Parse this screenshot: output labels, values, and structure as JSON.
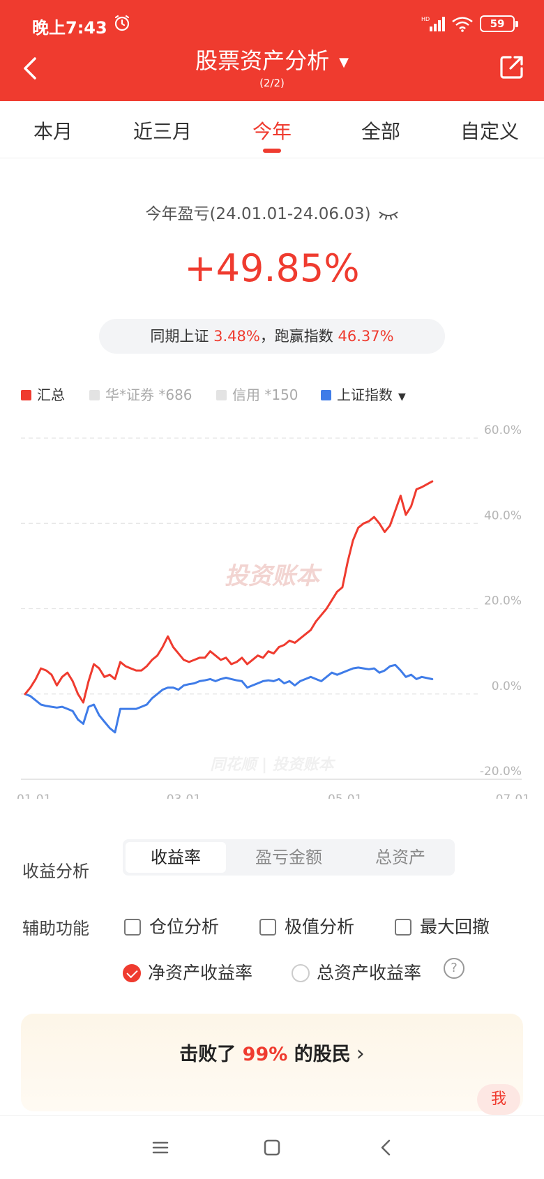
{
  "status_bar": {
    "time": "晚上7:43",
    "battery": "59"
  },
  "header": {
    "title": "股票资产分析",
    "subtitle": "(2/2)"
  },
  "tabs": [
    {
      "label": "本月"
    },
    {
      "label": "近三月"
    },
    {
      "label": "今年"
    },
    {
      "label": "全部"
    },
    {
      "label": "自定义"
    }
  ],
  "summary": {
    "period_label": "今年盈亏(24.01.01-24.06.03)",
    "value": "+49.85%",
    "compare_prefix": "同期上证",
    "index_return": "3.48%",
    "compare_mid": "，跑赢指数",
    "excess_return": "46.37%"
  },
  "legend": [
    {
      "name": "汇总",
      "color": "#ef3b2f"
    },
    {
      "name": "华*证券 *686",
      "color": "#e3e3e3"
    },
    {
      "name": "信用 *150",
      "color": "#e3e3e3"
    },
    {
      "name": "上证指数",
      "color": "#3f7ce8"
    }
  ],
  "chart_data": {
    "type": "line",
    "watermark": "投资账本",
    "watermark_bottom": "同花顺 | 投资账本",
    "x_ticks": [
      "01-01",
      "03-01",
      "05-01",
      "07-01"
    ],
    "y_ticks": [
      "60.0%",
      "40.0%",
      "20.0%",
      "0.0%",
      "-20.0%"
    ],
    "ylim": [
      -20,
      60
    ],
    "y_unit": "%",
    "series": [
      {
        "name": "汇总",
        "color": "#ef3b2f",
        "points": [
          [
            "01-01",
            0
          ],
          [
            "01-03",
            1.5
          ],
          [
            "01-05",
            3.5
          ],
          [
            "01-07",
            6
          ],
          [
            "01-09",
            5.5
          ],
          [
            "01-11",
            4.5
          ],
          [
            "01-13",
            2
          ],
          [
            "01-15",
            4
          ],
          [
            "01-17",
            5
          ],
          [
            "01-19",
            3
          ],
          [
            "01-21",
            0
          ],
          [
            "01-23",
            -2
          ],
          [
            "01-25",
            3
          ],
          [
            "01-27",
            7
          ],
          [
            "01-29",
            6
          ],
          [
            "01-31",
            4
          ],
          [
            "02-02",
            4.5
          ],
          [
            "02-04",
            3.5
          ],
          [
            "02-06",
            7.5
          ],
          [
            "02-08",
            6.5
          ],
          [
            "02-10",
            6
          ],
          [
            "02-12",
            5.5
          ],
          [
            "02-14",
            5.5
          ],
          [
            "02-16",
            6.5
          ],
          [
            "02-18",
            8
          ],
          [
            "02-20",
            9
          ],
          [
            "02-22",
            11
          ],
          [
            "02-24",
            13.5
          ],
          [
            "02-26",
            11
          ],
          [
            "02-28",
            9.5
          ],
          [
            "03-01",
            8
          ],
          [
            "03-03",
            7.5
          ],
          [
            "03-05",
            8
          ],
          [
            "03-07",
            8.5
          ],
          [
            "03-09",
            8.5
          ],
          [
            "03-11",
            10
          ],
          [
            "03-13",
            9
          ],
          [
            "03-15",
            8
          ],
          [
            "03-17",
            8.5
          ],
          [
            "03-19",
            7
          ],
          [
            "03-21",
            7.5
          ],
          [
            "03-23",
            8.5
          ],
          [
            "03-25",
            7
          ],
          [
            "03-27",
            8
          ],
          [
            "03-29",
            9
          ],
          [
            "03-31",
            8.5
          ],
          [
            "04-02",
            10
          ],
          [
            "04-04",
            9.5
          ],
          [
            "04-06",
            11
          ],
          [
            "04-08",
            11.5
          ],
          [
            "04-10",
            12.5
          ],
          [
            "04-12",
            12
          ],
          [
            "04-14",
            13
          ],
          [
            "04-16",
            14
          ],
          [
            "04-18",
            15
          ],
          [
            "04-20",
            17
          ],
          [
            "04-22",
            18.5
          ],
          [
            "04-24",
            20
          ],
          [
            "04-26",
            22
          ],
          [
            "04-28",
            24
          ],
          [
            "04-30",
            25
          ],
          [
            "05-02",
            31
          ],
          [
            "05-04",
            36
          ],
          [
            "05-06",
            39
          ],
          [
            "05-08",
            40
          ],
          [
            "05-10",
            40.5
          ],
          [
            "05-12",
            41.5
          ],
          [
            "05-14",
            40
          ],
          [
            "05-16",
            38
          ],
          [
            "05-18",
            39.5
          ],
          [
            "05-20",
            43
          ],
          [
            "05-22",
            46.5
          ],
          [
            "05-24",
            42
          ],
          [
            "05-26",
            44
          ],
          [
            "05-28",
            48
          ],
          [
            "05-30",
            48.5
          ],
          [
            "06-03",
            49.85
          ]
        ]
      },
      {
        "name": "上证指数",
        "color": "#3f7ce8",
        "points": [
          [
            "01-01",
            0
          ],
          [
            "01-03",
            -0.5
          ],
          [
            "01-05",
            -1.5
          ],
          [
            "01-07",
            -2.5
          ],
          [
            "01-09",
            -2.8
          ],
          [
            "01-11",
            -3
          ],
          [
            "01-13",
            -3.2
          ],
          [
            "01-15",
            -3
          ],
          [
            "01-17",
            -3.5
          ],
          [
            "01-19",
            -4
          ],
          [
            "01-21",
            -6
          ],
          [
            "01-23",
            -7
          ],
          [
            "01-25",
            -3
          ],
          [
            "01-27",
            -2.5
          ],
          [
            "01-29",
            -5
          ],
          [
            "01-31",
            -6.5
          ],
          [
            "02-02",
            -8
          ],
          [
            "02-04",
            -9
          ],
          [
            "02-06",
            -3.5
          ],
          [
            "02-08",
            -3.5
          ],
          [
            "02-10",
            -3.5
          ],
          [
            "02-12",
            -3.5
          ],
          [
            "02-14",
            -3
          ],
          [
            "02-16",
            -2.5
          ],
          [
            "02-18",
            -1
          ],
          [
            "02-20",
            0
          ],
          [
            "02-22",
            1
          ],
          [
            "02-24",
            1.5
          ],
          [
            "02-26",
            1.5
          ],
          [
            "02-28",
            1
          ],
          [
            "03-01",
            2
          ],
          [
            "03-03",
            2.3
          ],
          [
            "03-05",
            2.5
          ],
          [
            "03-07",
            3
          ],
          [
            "03-09",
            3.2
          ],
          [
            "03-11",
            3.5
          ],
          [
            "03-13",
            3
          ],
          [
            "03-15",
            3.5
          ],
          [
            "03-17",
            3.8
          ],
          [
            "03-19",
            3.5
          ],
          [
            "03-21",
            3.2
          ],
          [
            "03-23",
            3
          ],
          [
            "03-25",
            1.5
          ],
          [
            "03-27",
            2
          ],
          [
            "03-29",
            2.5
          ],
          [
            "03-31",
            3
          ],
          [
            "04-02",
            3.2
          ],
          [
            "04-04",
            3
          ],
          [
            "04-06",
            3.5
          ],
          [
            "04-08",
            2.5
          ],
          [
            "04-10",
            3
          ],
          [
            "04-12",
            2
          ],
          [
            "04-14",
            3
          ],
          [
            "04-16",
            3.5
          ],
          [
            "04-18",
            4
          ],
          [
            "04-20",
            3.5
          ],
          [
            "04-22",
            3
          ],
          [
            "04-24",
            4
          ],
          [
            "04-26",
            5
          ],
          [
            "04-28",
            4.5
          ],
          [
            "04-30",
            5
          ],
          [
            "05-02",
            5.5
          ],
          [
            "05-04",
            6
          ],
          [
            "05-06",
            6.2
          ],
          [
            "05-08",
            6
          ],
          [
            "05-10",
            5.8
          ],
          [
            "05-12",
            6
          ],
          [
            "05-14",
            5
          ],
          [
            "05-16",
            5.5
          ],
          [
            "05-18",
            6.5
          ],
          [
            "05-20",
            6.8
          ],
          [
            "05-22",
            5.5
          ],
          [
            "05-24",
            4
          ],
          [
            "05-26",
            4.5
          ],
          [
            "05-28",
            3.5
          ],
          [
            "05-30",
            4
          ],
          [
            "06-03",
            3.48
          ]
        ]
      }
    ]
  },
  "analysis": {
    "label": "收益分析",
    "options": [
      {
        "label": "收益率"
      },
      {
        "label": "盈亏金额"
      },
      {
        "label": "总资产"
      }
    ]
  },
  "aux": {
    "label": "辅助功能",
    "checkboxes": [
      {
        "label": "仓位分析"
      },
      {
        "label": "极值分析"
      },
      {
        "label": "最大回撤"
      }
    ],
    "radios": [
      {
        "label": "净资产收益率"
      },
      {
        "label": "总资产收益率"
      }
    ]
  },
  "beat": {
    "prefix": "击败了",
    "percent": "99%",
    "suffix": "的股民"
  },
  "me_badge": "我"
}
